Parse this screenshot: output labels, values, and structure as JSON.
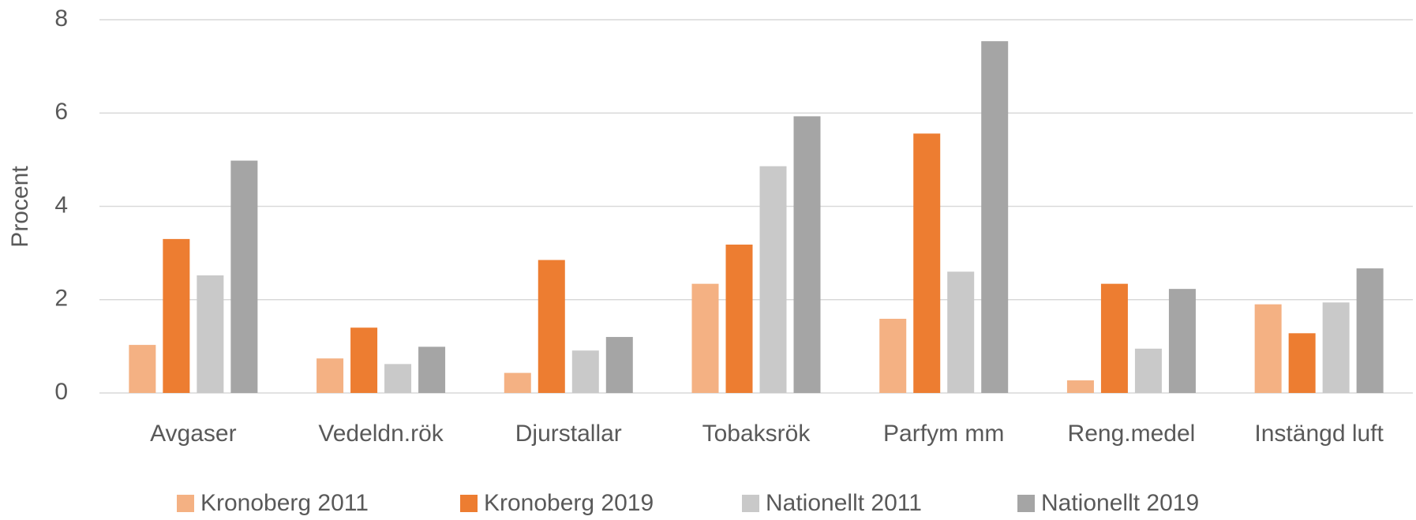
{
  "chart_data": {
    "type": "bar",
    "y_label": "Procent",
    "categories": [
      "Avgaser",
      "Vedeldn.rök",
      "Djurstallar",
      "Tobaksrök",
      "Parfym mm",
      "Reng.medel",
      "Instängd luft"
    ],
    "series": [
      {
        "name": "Kronoberg 2011",
        "color": "#f4b183",
        "values": [
          1.03,
          0.74,
          0.43,
          2.34,
          1.59,
          0.27,
          1.9
        ]
      },
      {
        "name": "Kronoberg 2019",
        "color": "#ed7d31",
        "values": [
          3.3,
          1.4,
          2.85,
          3.18,
          5.56,
          2.34,
          1.28
        ]
      },
      {
        "name": "Nationellt 2011",
        "color": "#c9c9c9",
        "values": [
          2.52,
          0.62,
          0.91,
          4.86,
          2.6,
          0.95,
          1.94
        ]
      },
      {
        "name": "Nationellt 2019",
        "color": "#a5a5a5",
        "values": [
          4.98,
          0.99,
          1.2,
          5.93,
          7.54,
          2.23,
          2.67
        ]
      }
    ],
    "ylim": [
      0,
      8
    ],
    "yticks": [
      0,
      2,
      4,
      6,
      8
    ],
    "grid": true,
    "legend": "bottom"
  }
}
